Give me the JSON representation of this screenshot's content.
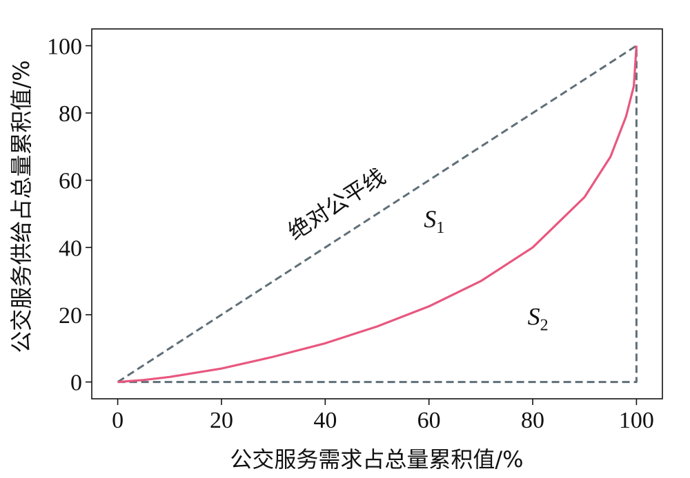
{
  "chart_data": {
    "type": "line",
    "title": "",
    "xlabel": "公交服务需求占总量累积值/%",
    "ylabel": "公交服务供给占总量累积值/%",
    "xlim": [
      -5,
      105
    ],
    "ylim": [
      -5,
      105
    ],
    "x_ticks": [
      0,
      20,
      40,
      60,
      80,
      100
    ],
    "y_ticks": [
      0,
      20,
      40,
      60,
      80,
      100
    ],
    "x_tick_labels": [
      "0",
      "20",
      "40",
      "60",
      "80",
      "100"
    ],
    "y_tick_labels": [
      "0",
      "20",
      "40",
      "60",
      "80",
      "100"
    ],
    "grid": false,
    "legend": "none",
    "series": [
      {
        "style": "dashed",
        "color": "#5f6f78",
        "x": [
          0,
          100
        ],
        "y": [
          0,
          100
        ]
      },
      {
        "style": "dashed",
        "color": "#5f6f78",
        "x": [
          0,
          100,
          100
        ],
        "y": [
          0,
          0,
          100
        ]
      },
      {
        "style": "solid",
        "color": "#e8577f",
        "x": [
          0,
          5,
          10,
          20,
          30,
          40,
          50,
          60,
          70,
          80,
          90,
          95,
          98,
          99.5,
          100
        ],
        "y": [
          0,
          0.6,
          1.5,
          4,
          7.5,
          11.5,
          16.5,
          22.5,
          30,
          40,
          55,
          67,
          79,
          88,
          100
        ]
      }
    ],
    "annotations": [
      {
        "text": "绝对公平线",
        "x": 43,
        "y": 51
      },
      {
        "text": "S",
        "sub": "1",
        "x": 61,
        "y": 46
      },
      {
        "text": "S",
        "sub": "2",
        "x": 81,
        "y": 17
      }
    ]
  }
}
